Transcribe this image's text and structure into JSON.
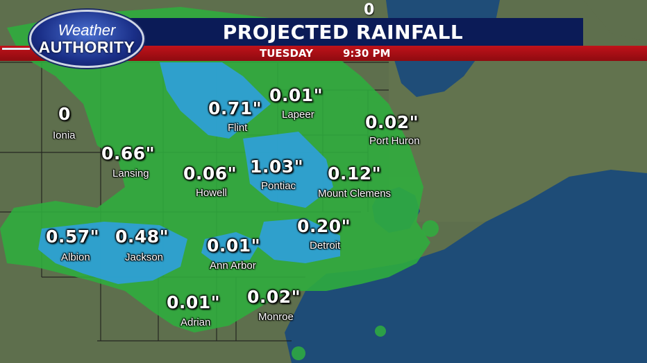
{
  "brand": {
    "line1": "Weather",
    "line2": "AUTHORITY"
  },
  "header": {
    "title": "PROJECTED RAINFALL",
    "day": "TUESDAY",
    "time": "9:30 PM"
  },
  "colors": {
    "title_bg": "#0b1b57",
    "sub_bg": "#b3111a",
    "water": "#1f4f7a",
    "land": "#5c6d4c",
    "rain_light": "#2fae3e",
    "rain_moderate": "#2f9fd6"
  },
  "top_partial_value": "0",
  "locations": [
    {
      "id": "ionia",
      "amount": "0",
      "city": "Ionia"
    },
    {
      "id": "flint",
      "amount": "0.71\"",
      "city": "Flint"
    },
    {
      "id": "lapeer",
      "amount": "0.01\"",
      "city": "Lapeer"
    },
    {
      "id": "port-huron",
      "amount": "0.02\"",
      "city": "Port Huron"
    },
    {
      "id": "lansing",
      "amount": "0.66\"",
      "city": "Lansing"
    },
    {
      "id": "howell",
      "amount": "0.06\"",
      "city": "Howell"
    },
    {
      "id": "pontiac",
      "amount": "1.03\"",
      "city": "Pontiac"
    },
    {
      "id": "mount-clemens",
      "amount": "0.12\"",
      "city": "Mount Clemens"
    },
    {
      "id": "albion",
      "amount": "0.57\"",
      "city": "Albion"
    },
    {
      "id": "jackson",
      "amount": "0.48\"",
      "city": "Jackson"
    },
    {
      "id": "ann-arbor",
      "amount": "0.01\"",
      "city": "Ann Arbor"
    },
    {
      "id": "detroit",
      "amount": "0.20\"",
      "city": "Detroit"
    },
    {
      "id": "adrian",
      "amount": "0.01\"",
      "city": "Adrian"
    },
    {
      "id": "monroe",
      "amount": "0.02\"",
      "city": "Monroe"
    }
  ]
}
